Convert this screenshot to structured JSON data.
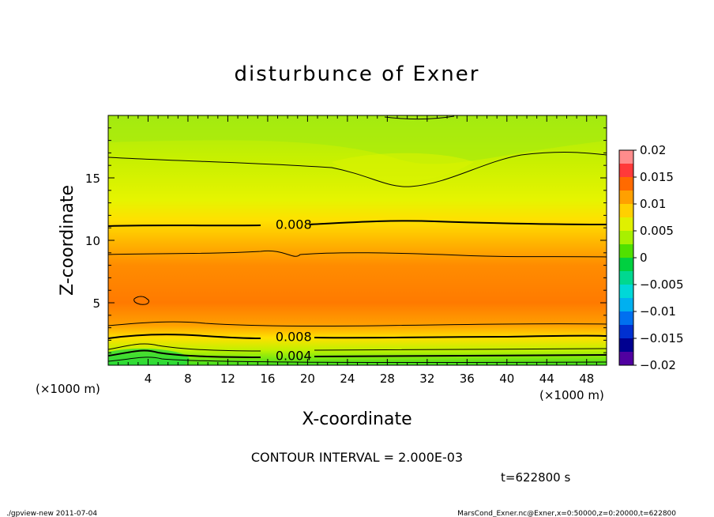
{
  "chart_data": {
    "type": "heatmap",
    "title": "disturbunce of Exner",
    "xlabel": "X-coordinate",
    "ylabel": "Z-coordinate",
    "x_unit": "(×1000 m)",
    "y_unit": "(×1000 m)",
    "xlim": [
      0,
      50
    ],
    "ylim": [
      0,
      20
    ],
    "x_ticks": [
      4,
      8,
      12,
      16,
      20,
      24,
      28,
      32,
      36,
      40,
      44,
      48
    ],
    "x_tick_labels": [
      "4",
      "8",
      "12",
      "16",
      "20",
      "24",
      "28",
      "32",
      "36",
      "40",
      "44",
      "48"
    ],
    "y_ticks": [
      5,
      10,
      15
    ],
    "y_tick_labels": [
      "5",
      "10",
      "15"
    ],
    "colorbar": {
      "range": [
        -0.02,
        0.02
      ],
      "tick_values": [
        0.02,
        0.015,
        0.01,
        0.005,
        0,
        -0.005,
        -0.01,
        -0.015,
        -0.02
      ],
      "tick_labels": [
        "0.02",
        "0.015",
        "0.01",
        "0.005",
        "0",
        "−0.005",
        "−0.01",
        "−0.015",
        "−0.02"
      ],
      "colors": [
        "#ff8c8c",
        "#ff3a3a",
        "#ff6a00",
        "#ffa000",
        "#ffd000",
        "#e0f000",
        "#a8f000",
        "#50e000",
        "#00d040",
        "#00d890",
        "#00d8d8",
        "#00b0f0",
        "#0070f0",
        "#0030d0",
        "#000090",
        "#5000a0"
      ]
    },
    "contour_labels": [
      {
        "text": "0.008",
        "x": 18.6,
        "z": 11.3
      },
      {
        "text": "0.008",
        "x": 18.6,
        "z": 2.3
      },
      {
        "text": "0.004",
        "x": 18.6,
        "z": 0.8
      }
    ],
    "contour_interval_text": "CONTOUR INTERVAL = 2.000E-03",
    "time_text": "t=622800 s",
    "footer_left": "./gpview-new   2011-07-04",
    "footer_right": "MarsCond_Exner.nc@Exner,x=0:50000,z=0:20000,t=622800"
  }
}
